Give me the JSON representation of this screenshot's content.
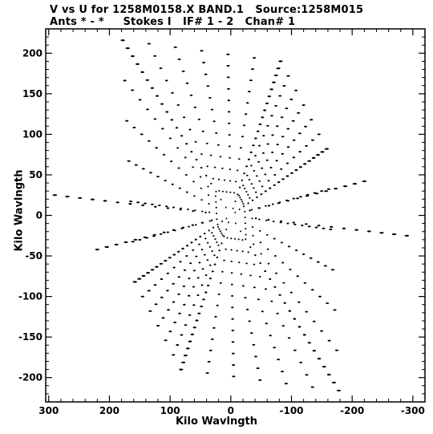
{
  "title_line1": "V vs U for 1258M0158.X BAND.1   Source:1258M015",
  "title_line2": "Ants * - *     Stokes I   IF# 1 - 2   Chan# 1",
  "chart_data": {
    "type": "scatter",
    "title": "V vs U for 1258M0158.X BAND.1   Source:1258M015",
    "subtitle": "Ants * - *     Stokes I   IF# 1 - 2   Chan# 1",
    "xlabel": "Kilo Wavlngth",
    "ylabel": "Kilo Wavlngth",
    "xlim": [
      305,
      -320
    ],
    "ylim": [
      -230,
      230
    ],
    "xticks": [
      300,
      200,
      100,
      0,
      -100,
      -200,
      -300
    ],
    "yticks": [
      200,
      150,
      100,
      50,
      0,
      -50,
      -100,
      -150,
      -200
    ],
    "grid": false,
    "points_description": "six-armed star uv-coverage, symmetric about origin",
    "arms": [
      {
        "end": [
          178,
          216
        ]
      },
      {
        "end": [
          -82,
          190
        ]
      },
      {
        "end": [
          -158,
          82
        ]
      },
      {
        "end": [
          -178,
          -216
        ]
      },
      {
        "end": [
          82,
          -190
        ]
      },
      {
        "end": [
          158,
          -82
        ]
      },
      {
        "end": [
          290,
          25
        ]
      },
      {
        "end": [
          -290,
          -25
        ]
      },
      {
        "end": [
          -220,
          42
        ]
      },
      {
        "end": [
          220,
          -42
        ]
      }
    ]
  }
}
